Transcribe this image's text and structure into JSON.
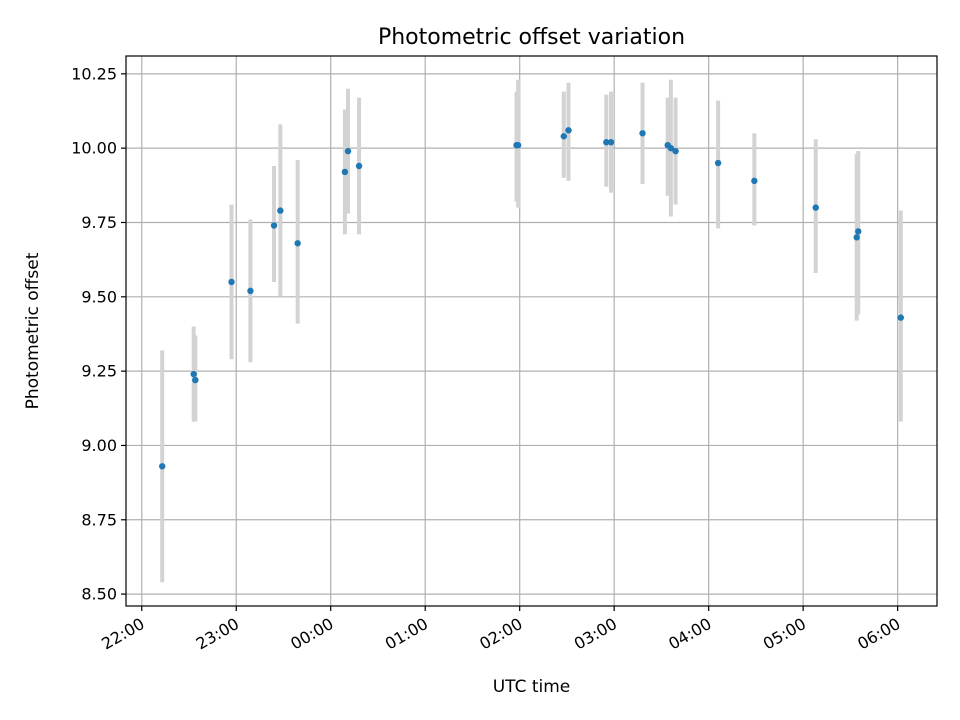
{
  "chart_data": {
    "type": "scatter",
    "title": "Photometric offset variation",
    "xlabel": "UTC time",
    "ylabel": "Photometric offset",
    "x_axis": "time",
    "xlim": [
      "2000-01-01T21:50",
      "2000-01-02T06:25"
    ],
    "ylim": [
      8.46,
      10.31
    ],
    "grid": true,
    "x_ticks": [
      {
        "t": "2000-01-01T22:00",
        "label": "22:00"
      },
      {
        "t": "2000-01-01T23:00",
        "label": "23:00"
      },
      {
        "t": "2000-01-02T00:00",
        "label": "00:00"
      },
      {
        "t": "2000-01-02T01:00",
        "label": "01:00"
      },
      {
        "t": "2000-01-02T02:00",
        "label": "02:00"
      },
      {
        "t": "2000-01-02T03:00",
        "label": "03:00"
      },
      {
        "t": "2000-01-02T04:00",
        "label": "04:00"
      },
      {
        "t": "2000-01-02T05:00",
        "label": "05:00"
      },
      {
        "t": "2000-01-02T06:00",
        "label": "06:00"
      }
    ],
    "y_ticks": [
      {
        "v": 8.5,
        "label": "8.50"
      },
      {
        "v": 8.75,
        "label": "8.75"
      },
      {
        "v": 9.0,
        "label": "9.00"
      },
      {
        "v": 9.25,
        "label": "9.25"
      },
      {
        "v": 9.5,
        "label": "9.50"
      },
      {
        "v": 9.75,
        "label": "9.75"
      },
      {
        "v": 10.0,
        "label": "10.00"
      },
      {
        "v": 10.25,
        "label": "10.25"
      }
    ],
    "marker_color": "#1f77b4",
    "errorbar_color": "#d3d3d3",
    "points": [
      {
        "t": "2000-01-01T22:13",
        "y": 8.93,
        "lo": 8.54,
        "hi": 9.32
      },
      {
        "t": "2000-01-01T22:33",
        "y": 9.24,
        "lo": 9.08,
        "hi": 9.4
      },
      {
        "t": "2000-01-01T22:34",
        "y": 9.22,
        "lo": 9.08,
        "hi": 9.37
      },
      {
        "t": "2000-01-01T22:57",
        "y": 9.55,
        "lo": 9.29,
        "hi": 9.81
      },
      {
        "t": "2000-01-01T23:09",
        "y": 9.52,
        "lo": 9.28,
        "hi": 9.76
      },
      {
        "t": "2000-01-01T23:24",
        "y": 9.74,
        "lo": 9.55,
        "hi": 9.94
      },
      {
        "t": "2000-01-01T23:28",
        "y": 9.79,
        "lo": 9.5,
        "hi": 10.08
      },
      {
        "t": "2000-01-01T23:39",
        "y": 9.68,
        "lo": 9.41,
        "hi": 9.96
      },
      {
        "t": "2000-01-02T00:09",
        "y": 9.92,
        "lo": 9.71,
        "hi": 10.13
      },
      {
        "t": "2000-01-02T00:11",
        "y": 9.99,
        "lo": 9.78,
        "hi": 10.2
      },
      {
        "t": "2000-01-02T00:18",
        "y": 9.94,
        "lo": 9.71,
        "hi": 10.17
      },
      {
        "t": "2000-01-02T01:58",
        "y": 10.01,
        "lo": 9.82,
        "hi": 10.19
      },
      {
        "t": "2000-01-02T01:59",
        "y": 10.01,
        "lo": 9.8,
        "hi": 10.23
      },
      {
        "t": "2000-01-02T02:28",
        "y": 10.04,
        "lo": 9.9,
        "hi": 10.19
      },
      {
        "t": "2000-01-02T02:31",
        "y": 10.06,
        "lo": 9.89,
        "hi": 10.22
      },
      {
        "t": "2000-01-02T02:55",
        "y": 10.02,
        "lo": 9.87,
        "hi": 10.18
      },
      {
        "t": "2000-01-02T02:58",
        "y": 10.02,
        "lo": 9.85,
        "hi": 10.19
      },
      {
        "t": "2000-01-02T03:18",
        "y": 10.05,
        "lo": 9.88,
        "hi": 10.22
      },
      {
        "t": "2000-01-02T03:34",
        "y": 10.01,
        "lo": 9.84,
        "hi": 10.17
      },
      {
        "t": "2000-01-02T03:36",
        "y": 10.0,
        "lo": 9.77,
        "hi": 10.23
      },
      {
        "t": "2000-01-02T03:39",
        "y": 9.99,
        "lo": 9.81,
        "hi": 10.17
      },
      {
        "t": "2000-01-02T04:06",
        "y": 9.95,
        "lo": 9.73,
        "hi": 10.16
      },
      {
        "t": "2000-01-02T04:29",
        "y": 9.89,
        "lo": 9.74,
        "hi": 10.05
      },
      {
        "t": "2000-01-02T05:08",
        "y": 9.8,
        "lo": 9.58,
        "hi": 10.03
      },
      {
        "t": "2000-01-02T05:34",
        "y": 9.7,
        "lo": 9.42,
        "hi": 9.98
      },
      {
        "t": "2000-01-02T05:35",
        "y": 9.72,
        "lo": 9.44,
        "hi": 9.99
      },
      {
        "t": "2000-01-02T06:02",
        "y": 9.43,
        "lo": 9.08,
        "hi": 9.79
      }
    ]
  }
}
